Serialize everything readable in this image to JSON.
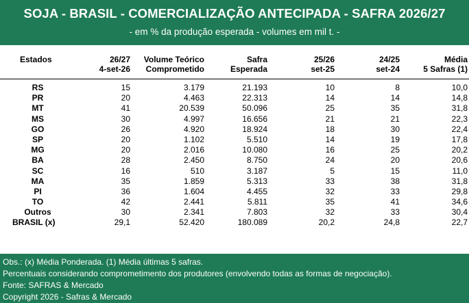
{
  "header": {
    "title": "SOJA - BRASIL - COMERCIALIZAÇÃO ANTECIPADA - SAFRA 2026/27",
    "subtitle": "- em % da produção esperada - volumes em mil t. -"
  },
  "table": {
    "columns": [
      {
        "line1": "Estados",
        "line2": ""
      },
      {
        "line1": "26/27",
        "line2": "4-set-26"
      },
      {
        "line1": "Volume Teórico",
        "line2": "Comprometido"
      },
      {
        "line1": "Safra",
        "line2": "Esperada"
      },
      {
        "line1": "25/26",
        "line2": "set-25"
      },
      {
        "line1": "24/25",
        "line2": "set-24"
      },
      {
        "line1": "Média",
        "line2": "5 Safras (1)"
      }
    ],
    "rows": [
      {
        "state": "RS",
        "c2627": "15",
        "volume": "3.179",
        "safra": "21.193",
        "c2526": "10",
        "c2425": "8",
        "media": "10,0"
      },
      {
        "state": "PR",
        "c2627": "20",
        "volume": "4.463",
        "safra": "22.313",
        "c2526": "14",
        "c2425": "14",
        "media": "14,8"
      },
      {
        "state": "MT",
        "c2627": "41",
        "volume": "20.539",
        "safra": "50.096",
        "c2526": "25",
        "c2425": "35",
        "media": "31,8"
      },
      {
        "state": "MS",
        "c2627": "30",
        "volume": "4.997",
        "safra": "16.656",
        "c2526": "21",
        "c2425": "21",
        "media": "22,3"
      },
      {
        "state": "GO",
        "c2627": "26",
        "volume": "4.920",
        "safra": "18.924",
        "c2526": "18",
        "c2425": "30",
        "media": "22,4"
      },
      {
        "state": "SP",
        "c2627": "20",
        "volume": "1.102",
        "safra": "5.510",
        "c2526": "14",
        "c2425": "19",
        "media": "17,8"
      },
      {
        "state": "MG",
        "c2627": "20",
        "volume": "2.016",
        "safra": "10.080",
        "c2526": "16",
        "c2425": "25",
        "media": "20,2"
      },
      {
        "state": "BA",
        "c2627": "28",
        "volume": "2.450",
        "safra": "8.750",
        "c2526": "24",
        "c2425": "20",
        "media": "20,6"
      },
      {
        "state": "SC",
        "c2627": "16",
        "volume": "510",
        "safra": "3.187",
        "c2526": "5",
        "c2425": "15",
        "media": "11,0"
      },
      {
        "state": "MA",
        "c2627": "35",
        "volume": "1.859",
        "safra": "5.313",
        "c2526": "33",
        "c2425": "38",
        "media": "31,8"
      },
      {
        "state": "PI",
        "c2627": "36",
        "volume": "1.604",
        "safra": "4.455",
        "c2526": "32",
        "c2425": "33",
        "media": "29,8"
      },
      {
        "state": "TO",
        "c2627": "42",
        "volume": "2.441",
        "safra": "5.811",
        "c2526": "35",
        "c2425": "41",
        "media": "34,6"
      },
      {
        "state": "Outros",
        "c2627": "30",
        "volume": "2.341",
        "safra": "7.803",
        "c2526": "32",
        "c2425": "33",
        "media": "30,4"
      }
    ],
    "total": {
      "state": "BRASIL (x)",
      "c2627": "29,1",
      "volume": "52.420",
      "safra": "180.089",
      "c2526": "20,2",
      "c2425": "24,8",
      "media": "22,7"
    }
  },
  "footer": {
    "lines": [
      "Obs.: (x) Média Ponderada.  (1) Média últimas 5 safras.",
      "Percentuais considerando comprometimento dos produtores (envolvendo todas as formas de negociação).",
      "Fonte: SAFRAS & Mercado",
      "Copyright 2026 - Safras & Mercado"
    ]
  },
  "colors": {
    "header_bg": "#1e7b55",
    "footer_bg": "#1e7b55",
    "text": "#000000"
  }
}
